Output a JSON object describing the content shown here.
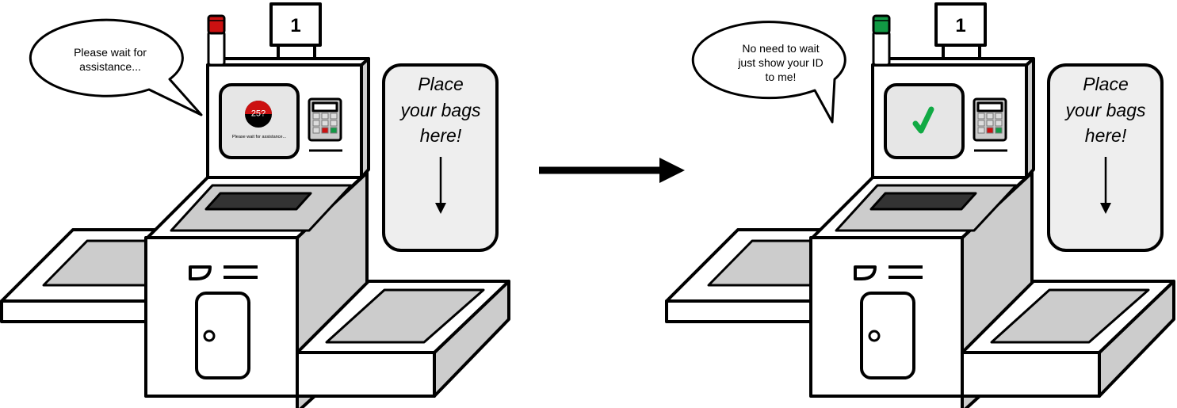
{
  "left_panel": {
    "lane_number": "1",
    "speech_line1": "Please wait for",
    "speech_line2": "assistance...",
    "screen_badge": "25?",
    "screen_caption": "Please wait for assistance...",
    "sign_line1": "Place",
    "sign_line2": "your bags",
    "sign_line3": "here!",
    "light_color": "#cc1111"
  },
  "right_panel": {
    "lane_number": "1",
    "speech_line1": "No need to wait",
    "speech_line2": "just show your ID",
    "speech_line3": "to me!",
    "screen_icon": "checkmark-icon",
    "sign_line1": "Place",
    "sign_line2": "your bags",
    "sign_line3": "here!",
    "light_color": "#119944"
  },
  "colors": {
    "outline": "#000000",
    "panel_fill": "#ffffff",
    "shade": "#cccccc",
    "dark_slot": "#333333",
    "screen_fill": "#e6e6e6",
    "keypad_red": "#cc1111",
    "keypad_green": "#119944",
    "check_green": "#11aa44"
  }
}
